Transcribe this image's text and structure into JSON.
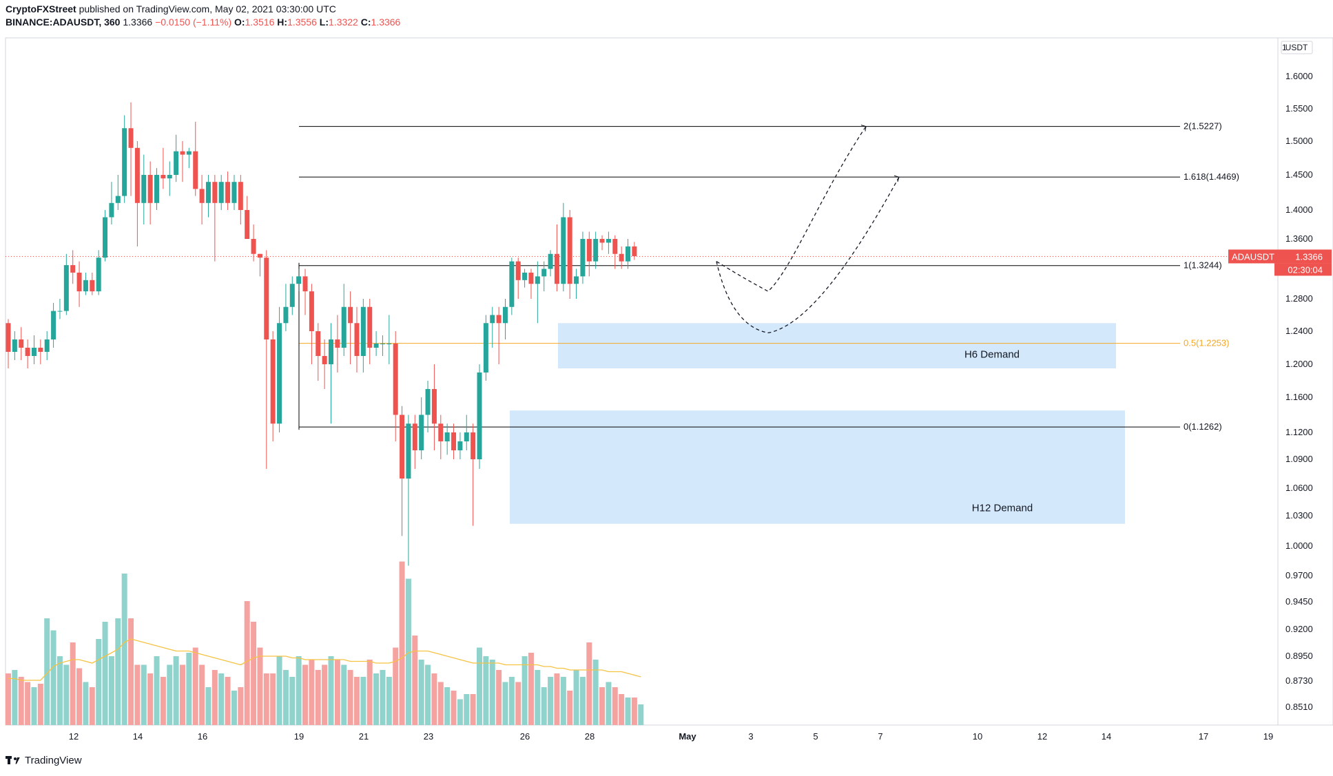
{
  "header": {
    "publisher": "CryptoFXStreet",
    "published_text": "published on TradingView.com, May 02, 2021 03:30:00 UTC",
    "symbol": "BINANCE:ADAUSDT, 360",
    "last": "1.3366",
    "change": "−0.0150 (−1.11%)",
    "o_label": "O:",
    "o_val": "1.3516",
    "h_label": "H:",
    "h_val": "1.3556",
    "l_label": "L:",
    "l_val": "1.3322",
    "c_label": "C:",
    "c_val": "1.3366"
  },
  "footer": {
    "brand": "TradingView"
  },
  "colors": {
    "up": "#26a69a",
    "down": "#ef5350",
    "vol_up": "#8fd3cc",
    "vol_down": "#f5a3a1",
    "ma": "#f5c242",
    "fib": "#000000",
    "fib_mid": "#f5a623",
    "zone": "#cfe5fb",
    "price_tag": "#ef5350"
  },
  "chart_data": {
    "type": "candlestick",
    "title": "",
    "currency": "USDT",
    "y_ticks": [
      "1.6000",
      "1.5500",
      "1.5000",
      "1.4500",
      "1.4000",
      "1.3600",
      "1.2800",
      "1.2400",
      "1.2000",
      "1.1600",
      "1.1200",
      "1.0900",
      "1.0600",
      "1.0300",
      "1.0000",
      "0.9700",
      "0.9450",
      "0.9200",
      "0.8950",
      "0.8730",
      "0.8510"
    ],
    "x_ticks": [
      "12",
      "14",
      "16",
      "19",
      "21",
      "23",
      "26",
      "28",
      "May",
      "3",
      "5",
      "7",
      "10",
      "12",
      "14",
      "17",
      "19"
    ],
    "candles": [
      [
        1.25,
        1.215,
        1.255,
        1.195
      ],
      [
        1.215,
        1.23,
        1.24,
        1.205
      ],
      [
        1.23,
        1.22,
        1.245,
        1.205
      ],
      [
        1.22,
        1.21,
        1.23,
        1.195
      ],
      [
        1.21,
        1.22,
        1.235,
        1.2
      ],
      [
        1.22,
        1.215,
        1.23,
        1.2
      ],
      [
        1.215,
        1.23,
        1.24,
        1.205
      ],
      [
        1.23,
        1.265,
        1.275,
        1.22
      ],
      [
        1.265,
        1.265,
        1.28,
        1.255
      ],
      [
        1.265,
        1.325,
        1.34,
        1.26
      ],
      [
        1.325,
        1.315,
        1.345,
        1.3
      ],
      [
        1.315,
        1.29,
        1.33,
        1.27
      ],
      [
        1.29,
        1.305,
        1.315,
        1.285
      ],
      [
        1.305,
        1.29,
        1.315,
        1.285
      ],
      [
        1.29,
        1.335,
        1.345,
        1.285
      ],
      [
        1.335,
        1.39,
        1.4,
        1.33
      ],
      [
        1.39,
        1.41,
        1.44,
        1.38
      ],
      [
        1.41,
        1.42,
        1.45,
        1.4
      ],
      [
        1.42,
        1.52,
        1.54,
        1.41
      ],
      [
        1.52,
        1.49,
        1.56,
        1.42
      ],
      [
        1.49,
        1.41,
        1.5,
        1.35
      ],
      [
        1.41,
        1.45,
        1.48,
        1.38
      ],
      [
        1.45,
        1.41,
        1.47,
        1.38
      ],
      [
        1.41,
        1.45,
        1.46,
        1.4
      ],
      [
        1.45,
        1.445,
        1.49,
        1.43
      ],
      [
        1.445,
        1.45,
        1.47,
        1.42
      ],
      [
        1.45,
        1.485,
        1.51,
        1.44
      ],
      [
        1.485,
        1.48,
        1.5,
        1.44
      ],
      [
        1.48,
        1.485,
        1.49,
        1.46
      ],
      [
        1.485,
        1.43,
        1.53,
        1.42
      ],
      [
        1.43,
        1.41,
        1.45,
        1.38
      ],
      [
        1.41,
        1.44,
        1.45,
        1.39
      ],
      [
        1.44,
        1.41,
        1.45,
        1.33
      ],
      [
        1.41,
        1.44,
        1.45,
        1.4
      ],
      [
        1.44,
        1.41,
        1.455,
        1.4
      ],
      [
        1.41,
        1.44,
        1.45,
        1.4
      ],
      [
        1.44,
        1.4,
        1.45,
        1.38
      ],
      [
        1.4,
        1.36,
        1.42,
        1.36
      ],
      [
        1.36,
        1.34,
        1.38,
        1.33
      ],
      [
        1.34,
        1.335,
        1.34,
        1.31
      ],
      [
        1.335,
        1.23,
        1.345,
        1.08
      ],
      [
        1.23,
        1.13,
        1.24,
        1.11
      ],
      [
        1.13,
        1.25,
        1.27,
        1.12
      ],
      [
        1.25,
        1.27,
        1.3,
        1.24
      ],
      [
        1.27,
        1.3,
        1.31,
        1.26
      ],
      [
        1.3,
        1.31,
        1.32,
        1.29
      ],
      [
        1.31,
        1.29,
        1.32,
        1.26
      ],
      [
        1.29,
        1.24,
        1.3,
        1.2
      ],
      [
        1.24,
        1.21,
        1.25,
        1.18
      ],
      [
        1.21,
        1.2,
        1.23,
        1.17
      ],
      [
        1.2,
        1.23,
        1.25,
        1.13
      ],
      [
        1.23,
        1.22,
        1.26,
        1.19
      ],
      [
        1.22,
        1.27,
        1.3,
        1.21
      ],
      [
        1.27,
        1.25,
        1.29,
        1.2
      ],
      [
        1.25,
        1.21,
        1.27,
        1.19
      ],
      [
        1.21,
        1.27,
        1.28,
        1.19
      ],
      [
        1.27,
        1.22,
        1.28,
        1.2
      ],
      [
        1.22,
        1.225,
        1.24,
        1.21
      ],
      [
        1.225,
        1.225,
        1.235,
        1.21
      ],
      [
        1.225,
        1.225,
        1.26,
        1.2
      ],
      [
        1.225,
        1.14,
        1.24,
        1.11
      ],
      [
        1.14,
        1.07,
        1.15,
        1.01
      ],
      [
        1.07,
        1.13,
        1.14,
        0.98
      ],
      [
        1.13,
        1.1,
        1.14,
        1.08
      ],
      [
        1.1,
        1.14,
        1.16,
        1.09
      ],
      [
        1.14,
        1.17,
        1.18,
        1.12
      ],
      [
        1.17,
        1.13,
        1.2,
        1.1
      ],
      [
        1.13,
        1.11,
        1.14,
        1.09
      ],
      [
        1.11,
        1.12,
        1.13,
        1.095
      ],
      [
        1.12,
        1.1,
        1.13,
        1.09
      ],
      [
        1.1,
        1.11,
        1.12,
        1.09
      ],
      [
        1.11,
        1.12,
        1.14,
        1.1
      ],
      [
        1.12,
        1.09,
        1.13,
        1.02
      ],
      [
        1.09,
        1.19,
        1.2,
        1.08
      ],
      [
        1.19,
        1.25,
        1.26,
        1.18
      ],
      [
        1.25,
        1.26,
        1.27,
        1.22
      ],
      [
        1.26,
        1.25,
        1.27,
        1.2
      ],
      [
        1.25,
        1.27,
        1.28,
        1.23
      ],
      [
        1.27,
        1.33,
        1.335,
        1.26
      ],
      [
        1.33,
        1.305,
        1.335,
        1.28
      ],
      [
        1.305,
        1.315,
        1.32,
        1.295
      ],
      [
        1.315,
        1.3,
        1.32,
        1.28
      ],
      [
        1.3,
        1.31,
        1.33,
        1.25
      ],
      [
        1.31,
        1.32,
        1.33,
        1.29
      ],
      [
        1.32,
        1.34,
        1.345,
        1.31
      ],
      [
        1.34,
        1.3,
        1.38,
        1.29
      ],
      [
        1.3,
        1.39,
        1.41,
        1.29
      ],
      [
        1.39,
        1.3,
        1.4,
        1.28
      ],
      [
        1.3,
        1.31,
        1.32,
        1.28
      ],
      [
        1.31,
        1.36,
        1.37,
        1.3
      ],
      [
        1.36,
        1.33,
        1.37,
        1.31
      ],
      [
        1.33,
        1.36,
        1.37,
        1.32
      ],
      [
        1.36,
        1.355,
        1.365,
        1.345
      ],
      [
        1.355,
        1.36,
        1.37,
        1.34
      ],
      [
        1.36,
        1.34,
        1.365,
        1.32
      ],
      [
        1.34,
        1.33,
        1.35,
        1.32
      ],
      [
        1.33,
        1.35,
        1.36,
        1.32
      ],
      [
        1.35,
        1.337,
        1.356,
        1.332
      ]
    ],
    "volumes": [
      0.3,
      0.32,
      0.28,
      0.25,
      0.22,
      0.24,
      0.62,
      0.55,
      0.4,
      0.35,
      0.48,
      0.33,
      0.25,
      0.22,
      0.5,
      0.6,
      0.4,
      0.62,
      0.88,
      0.62,
      0.35,
      0.35,
      0.3,
      0.4,
      0.28,
      0.35,
      0.4,
      0.35,
      0.42,
      0.45,
      0.35,
      0.22,
      0.32,
      0.3,
      0.28,
      0.2,
      0.22,
      0.72,
      0.6,
      0.45,
      0.3,
      0.3,
      0.4,
      0.32,
      0.28,
      0.4,
      0.35,
      0.38,
      0.32,
      0.35,
      0.4,
      0.38,
      0.35,
      0.32,
      0.28,
      0.28,
      0.38,
      0.3,
      0.32,
      0.28,
      0.45,
      0.95,
      0.85,
      0.52,
      0.38,
      0.35,
      0.3,
      0.25,
      0.22,
      0.2,
      0.15,
      0.18,
      0.18,
      0.45,
      0.4,
      0.38,
      0.32,
      0.25,
      0.28,
      0.25,
      0.4,
      0.42,
      0.32,
      0.22,
      0.28,
      0.3,
      0.28,
      0.2,
      0.32,
      0.28,
      0.48,
      0.38,
      0.22,
      0.25,
      0.22,
      0.18,
      0.16,
      0.16,
      0.12
    ],
    "volume_ma": [
      0.27,
      0.27,
      0.26,
      0.26,
      0.26,
      0.26,
      0.3,
      0.34,
      0.36,
      0.37,
      0.38,
      0.38,
      0.37,
      0.36,
      0.38,
      0.4,
      0.42,
      0.44,
      0.48,
      0.5,
      0.49,
      0.48,
      0.47,
      0.46,
      0.45,
      0.44,
      0.43,
      0.43,
      0.43,
      0.42,
      0.41,
      0.4,
      0.39,
      0.38,
      0.37,
      0.36,
      0.35,
      0.37,
      0.39,
      0.4,
      0.4,
      0.4,
      0.4,
      0.4,
      0.39,
      0.39,
      0.38,
      0.38,
      0.38,
      0.38,
      0.38,
      0.38,
      0.38,
      0.37,
      0.37,
      0.37,
      0.37,
      0.36,
      0.36,
      0.36,
      0.37,
      0.39,
      0.42,
      0.43,
      0.43,
      0.43,
      0.42,
      0.41,
      0.4,
      0.39,
      0.38,
      0.37,
      0.36,
      0.36,
      0.36,
      0.36,
      0.36,
      0.35,
      0.35,
      0.35,
      0.35,
      0.35,
      0.35,
      0.34,
      0.34,
      0.33,
      0.33,
      0.32,
      0.32,
      0.32,
      0.32,
      0.32,
      0.32,
      0.31,
      0.31,
      0.31,
      0.3,
      0.29,
      0.28
    ],
    "fib_levels": [
      {
        "label": "2(1.5227)",
        "value": 1.5227
      },
      {
        "label": "1.618(1.4469)",
        "value": 1.4469
      },
      {
        "label": "1(1.3244)",
        "value": 1.3244
      },
      {
        "label": "0.5(1.2253)",
        "value": 1.2253
      },
      {
        "label": "0(1.1262)",
        "value": 1.1262
      }
    ],
    "zones": [
      {
        "label": "H6 Demand",
        "top": 1.25,
        "bottom": 1.195
      },
      {
        "label": "H12 Demand",
        "top": 1.145,
        "bottom": 1.022
      }
    ],
    "current_price_label": "ADAUSDT",
    "current_price": "1.3366",
    "countdown": "02:30:04"
  }
}
